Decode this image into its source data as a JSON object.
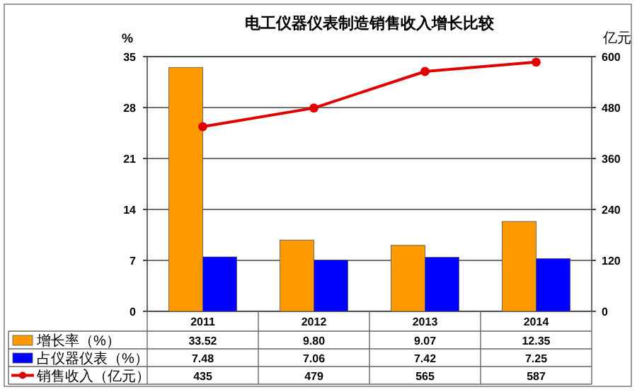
{
  "chart_data": {
    "type": "bar",
    "title": "电工仪器仪表制造销售收入增长比较",
    "categories": [
      "2011",
      "2012",
      "2013",
      "2014"
    ],
    "ylabel": "%",
    "y2label": "亿元",
    "ylim": [
      0,
      35
    ],
    "yticks": [
      0,
      7,
      14,
      21,
      28,
      35
    ],
    "y2lim": [
      0,
      600
    ],
    "y2ticks": [
      0,
      120,
      240,
      360,
      480,
      600
    ],
    "grid": "y",
    "legend": "bottom left",
    "series": [
      {
        "name": "增长率（%）",
        "color": "#ff9900",
        "values": [
          33.52,
          9.8,
          9.07,
          12.35
        ],
        "value_labels": [
          "33.52",
          "9.80",
          "9.07",
          "12.35"
        ]
      },
      {
        "name": "占仪器仪表（%）",
        "color": "#0000ff",
        "values": [
          7.48,
          7.06,
          7.42,
          7.25
        ],
        "value_labels": [
          "7.48",
          "7.06",
          "7.42",
          "7.25"
        ]
      },
      {
        "name": "销售收入（亿元）",
        "type": "line",
        "axis": "y2",
        "marker": "circle",
        "color": "#e00000",
        "values": [
          435,
          479,
          565,
          587
        ],
        "value_labels": [
          "435",
          "479",
          "565",
          "587"
        ]
      }
    ]
  }
}
